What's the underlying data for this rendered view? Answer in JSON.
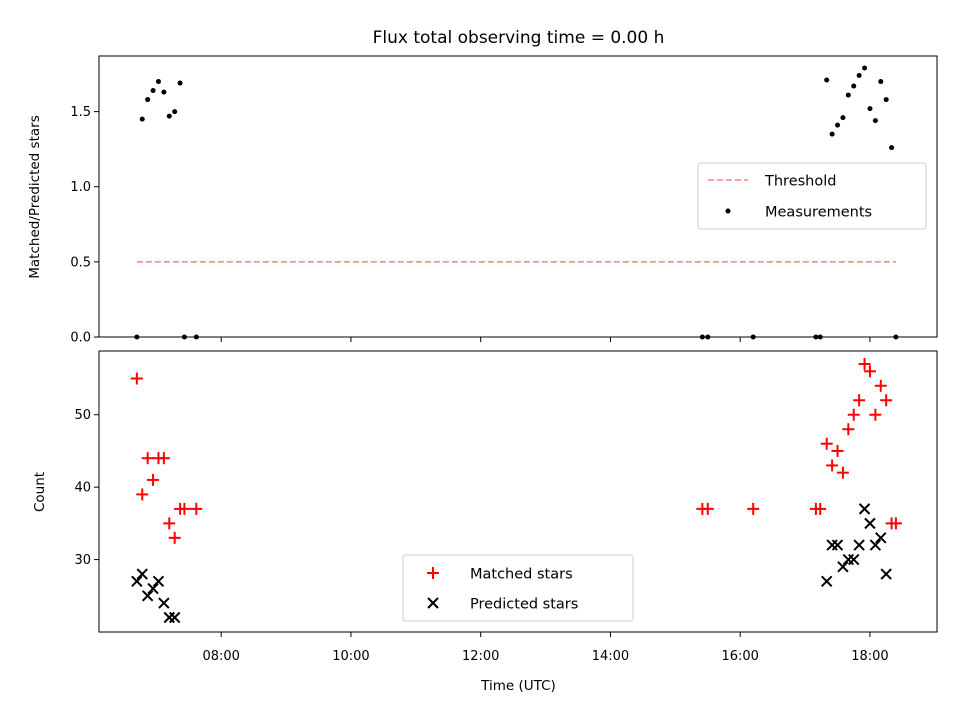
{
  "chart_data": [
    {
      "type": "scatter",
      "title": "Flux total observing time = 0.00 h",
      "xlabel": "",
      "ylabel": "Matched/Predicted stars",
      "ylim": [
        0,
        1.87
      ],
      "yticks": [
        "0.0",
        "0.5",
        "1.0",
        "1.5"
      ],
      "ytick_values": [
        0,
        0.5,
        1.0,
        1.5
      ],
      "legend_position": "center-right",
      "legend": [
        "Threshold",
        "Measurements"
      ],
      "threshold": {
        "name": "Threshold",
        "value": 0.5,
        "x_start": "06:42",
        "x_end": "18:24",
        "color": "#ff7f7f"
      },
      "series": [
        {
          "name": "Measurements",
          "color": "#000000",
          "points": [
            [
              "06:42",
              0.0
            ],
            [
              "06:47",
              1.45
            ],
            [
              "06:52",
              1.58
            ],
            [
              "06:57",
              1.64
            ],
            [
              "07:02",
              1.7
            ],
            [
              "07:07",
              1.63
            ],
            [
              "07:12",
              1.47
            ],
            [
              "07:17",
              1.5
            ],
            [
              "07:22",
              1.69
            ],
            [
              "07:26",
              0.0
            ],
            [
              "07:37",
              0.0
            ],
            [
              "15:25",
              0.0
            ],
            [
              "15:30",
              0.0
            ],
            [
              "16:12",
              0.0
            ],
            [
              "17:10",
              0.0
            ],
            [
              "17:14",
              0.0
            ],
            [
              "17:20",
              1.71
            ],
            [
              "17:25",
              1.35
            ],
            [
              "17:30",
              1.41
            ],
            [
              "17:35",
              1.46
            ],
            [
              "17:40",
              1.61
            ],
            [
              "17:45",
              1.67
            ],
            [
              "17:50",
              1.74
            ],
            [
              "17:55",
              1.79
            ],
            [
              "18:00",
              1.52
            ],
            [
              "18:05",
              1.44
            ],
            [
              "18:10",
              1.7
            ],
            [
              "18:15",
              1.58
            ],
            [
              "18:20",
              1.26
            ],
            [
              "18:24",
              0.0
            ]
          ]
        }
      ]
    },
    {
      "type": "scatter",
      "title": "",
      "xlabel": "Time (UTC)",
      "ylabel": "Count",
      "ylim": [
        20,
        58.8
      ],
      "yticks": [
        "30",
        "40",
        "50"
      ],
      "ytick_values": [
        30,
        40,
        50
      ],
      "xlim": [
        "06:07",
        "19:02"
      ],
      "xticks": [
        "08:00",
        "10:00",
        "12:00",
        "14:00",
        "16:00",
        "18:00"
      ],
      "legend_position": "lower-center",
      "legend": [
        "Matched stars",
        "Predicted stars"
      ],
      "series": [
        {
          "name": "Matched stars",
          "marker": "plus",
          "color": "#ff0000",
          "points": [
            [
              "06:42",
              55
            ],
            [
              "06:47",
              39
            ],
            [
              "06:52",
              44
            ],
            [
              "06:57",
              41
            ],
            [
              "07:02",
              44
            ],
            [
              "07:07",
              44
            ],
            [
              "07:12",
              35
            ],
            [
              "07:17",
              33
            ],
            [
              "07:22",
              37
            ],
            [
              "07:26",
              37
            ],
            [
              "07:37",
              37
            ],
            [
              "15:25",
              37
            ],
            [
              "15:30",
              37
            ],
            [
              "16:12",
              37
            ],
            [
              "17:10",
              37
            ],
            [
              "17:14",
              37
            ],
            [
              "17:20",
              46
            ],
            [
              "17:25",
              43
            ],
            [
              "17:30",
              45
            ],
            [
              "17:35",
              42
            ],
            [
              "17:40",
              48
            ],
            [
              "17:45",
              50
            ],
            [
              "17:50",
              52
            ],
            [
              "17:55",
              57
            ],
            [
              "18:00",
              56
            ],
            [
              "18:05",
              50
            ],
            [
              "18:10",
              54
            ],
            [
              "18:15",
              52
            ],
            [
              "18:20",
              35
            ],
            [
              "18:24",
              35
            ]
          ]
        },
        {
          "name": "Predicted stars",
          "marker": "x",
          "color": "#000000",
          "points": [
            [
              "06:42",
              27
            ],
            [
              "06:47",
              28
            ],
            [
              "06:52",
              25
            ],
            [
              "06:57",
              26
            ],
            [
              "07:02",
              27
            ],
            [
              "07:07",
              24
            ],
            [
              "07:12",
              22
            ],
            [
              "07:17",
              22
            ],
            [
              "17:20",
              27
            ],
            [
              "17:25",
              32
            ],
            [
              "17:30",
              32
            ],
            [
              "17:35",
              29
            ],
            [
              "17:40",
              30
            ],
            [
              "17:45",
              30
            ],
            [
              "17:50",
              32
            ],
            [
              "17:55",
              37
            ],
            [
              "18:00",
              35
            ],
            [
              "18:05",
              32
            ],
            [
              "18:10",
              33
            ],
            [
              "18:15",
              28
            ]
          ]
        }
      ]
    }
  ]
}
